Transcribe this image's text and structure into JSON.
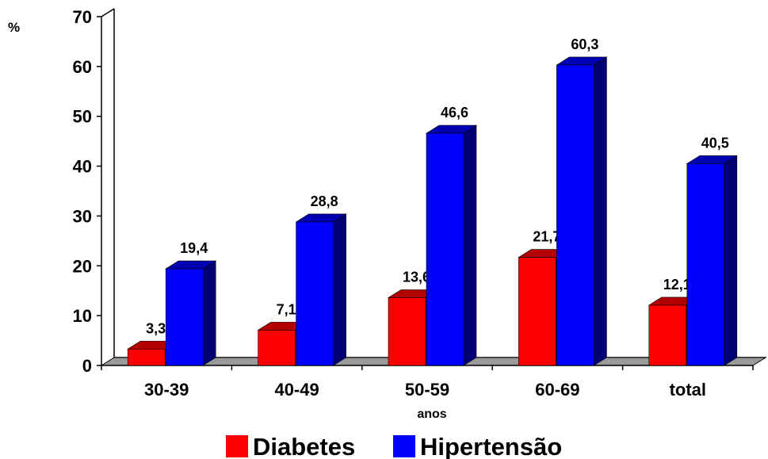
{
  "chart_data": {
    "type": "bar",
    "categories": [
      "30-39",
      "40-49",
      "50-59",
      "60-69",
      "total"
    ],
    "series": [
      {
        "name": "Diabetes",
        "values": [
          3.3,
          7.1,
          13.6,
          21.7,
          12.1
        ],
        "labels": [
          "3,3",
          "7,1",
          "13,6",
          "21,7",
          "12,1"
        ],
        "color": "#ff0000"
      },
      {
        "name": "Hipertensão",
        "values": [
          19.4,
          28.8,
          46.6,
          60.3,
          40.5
        ],
        "labels": [
          "19,4",
          "28,8",
          "46,6",
          "60,3",
          "40,5"
        ],
        "color": "#0000ff"
      }
    ],
    "ylabel": "%",
    "xlabel": "anos",
    "ylim": [
      0,
      70
    ],
    "yticks": [
      0,
      10,
      20,
      30,
      40,
      50,
      60,
      70
    ],
    "grid": false,
    "legend": "bottom",
    "style": "3d-column"
  }
}
